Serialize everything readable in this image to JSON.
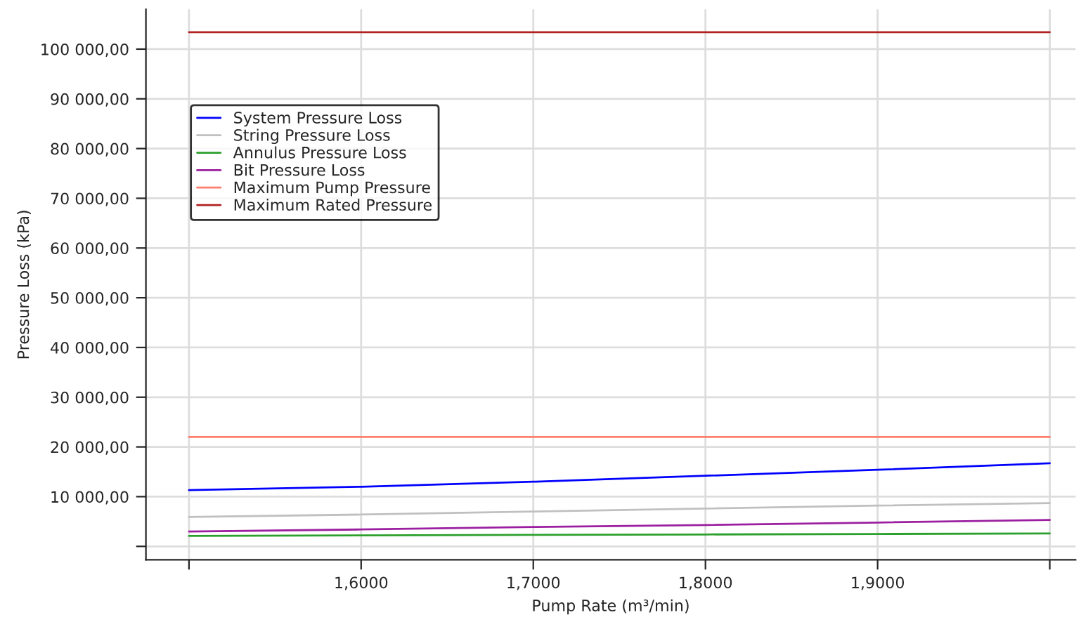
{
  "chart_data": {
    "type": "line",
    "xlabel": "Pump Rate (m³/min)",
    "ylabel": "Pressure Loss (kPa)",
    "categories": [
      null,
      "1,6000",
      "1,7000",
      "1,8000",
      "1,9000",
      null
    ],
    "series": [
      {
        "name": "System Pressure Loss",
        "color": "#0000ff",
        "values": [
          11300,
          12000,
          13000,
          14200,
          15400,
          16700
        ]
      },
      {
        "name": "String Pressure Loss",
        "color": "#c0c0c0",
        "values": [
          5900,
          6400,
          7000,
          7600,
          8200,
          8700
        ]
      },
      {
        "name": "Annulus Pressure Loss",
        "color": "#2ca02c",
        "values": [
          2100,
          2200,
          2300,
          2400,
          2500,
          2600
        ]
      },
      {
        "name": "Bit Pressure Loss",
        "color": "#9b1fa0",
        "values": [
          3000,
          3400,
          3900,
          4300,
          4800,
          5300
        ]
      },
      {
        "name": "Maximum Pump Pressure",
        "color": "#ff7f6e",
        "values": [
          22000,
          22000,
          22000,
          22000,
          22000,
          22000
        ]
      },
      {
        "name": "Maximum Rated Pressure",
        "color": "#b22222",
        "values": [
          103400,
          103400,
          103400,
          103400,
          103400,
          103400
        ]
      }
    ],
    "ylim": [
      -2700,
      108000
    ],
    "yticks": [
      {
        "value": 0,
        "label": null
      },
      {
        "value": 10000,
        "label": "10 000,00"
      },
      {
        "value": 20000,
        "label": "20 000,00"
      },
      {
        "value": 30000,
        "label": "30 000,00"
      },
      {
        "value": 40000,
        "label": "40 000,00"
      },
      {
        "value": 50000,
        "label": "50 000,00"
      },
      {
        "value": 60000,
        "label": "60 000,00"
      },
      {
        "value": 70000,
        "label": "70 000,00"
      },
      {
        "value": 80000,
        "label": "80 000,00"
      },
      {
        "value": 90000,
        "label": "90 000,00"
      },
      {
        "value": 100000,
        "label": "100 000,00"
      }
    ],
    "grid": true,
    "legend": "upper left"
  }
}
